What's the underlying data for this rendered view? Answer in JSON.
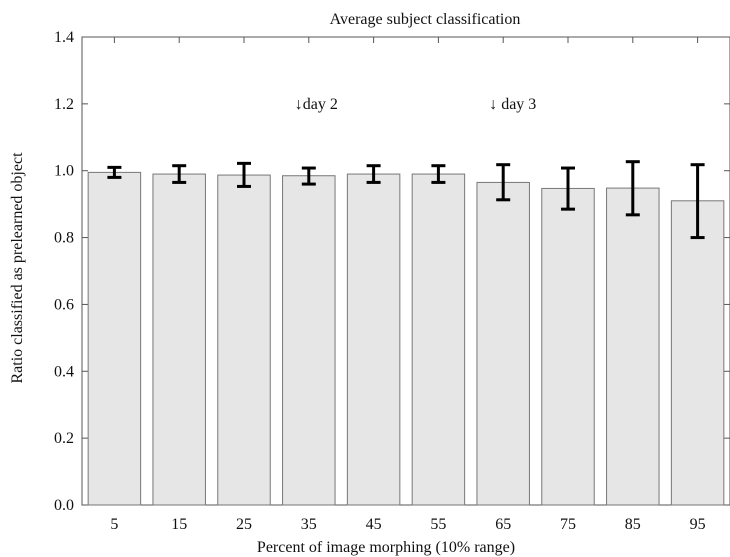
{
  "chart_data": {
    "type": "bar",
    "title": "Average subject classification",
    "xlabel": "Percent of image morphing (10% range)",
    "ylabel": "Ratio classified as prelearned object",
    "categories": [
      "5",
      "15",
      "25",
      "35",
      "45",
      "55",
      "65",
      "75",
      "85",
      "95"
    ],
    "values": [
      0.995,
      0.99,
      0.987,
      0.985,
      0.99,
      0.99,
      0.965,
      0.947,
      0.948,
      0.91
    ],
    "error_low": [
      0.98,
      0.965,
      0.953,
      0.96,
      0.965,
      0.965,
      0.913,
      0.885,
      0.868,
      0.8
    ],
    "error_high": [
      1.01,
      1.015,
      1.022,
      1.008,
      1.015,
      1.015,
      1.018,
      1.008,
      1.027,
      1.018
    ],
    "ylim": [
      0.0,
      1.4
    ],
    "yticks": [
      "0.0",
      "0.2",
      "0.4",
      "0.6",
      "0.8",
      "1.0",
      "1.2",
      "1.4"
    ],
    "grid": false,
    "annotations": [
      {
        "text": "↓day 2",
        "x_category": "35",
        "y": 1.2
      },
      {
        "text": "↓ day 3",
        "x_category": "65",
        "y": 1.2
      }
    ],
    "colors": {
      "bar_fill": "#e6e6e6",
      "bar_stroke": "#777777",
      "error": "#000000",
      "axis": "#555555"
    }
  }
}
